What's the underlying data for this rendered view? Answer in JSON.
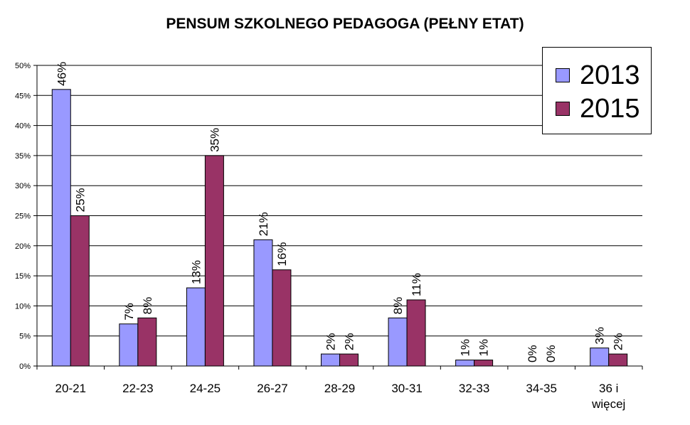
{
  "title": "PENSUM SZKOLNEGO PEDAGOGA (PEŁNY ETAT)",
  "chart_data": {
    "type": "bar",
    "title": "PENSUM SZKOLNEGO PEDAGOGA (PEŁNY ETAT)",
    "xlabel": "",
    "ylabel": "",
    "categories": [
      "20-21",
      "22-23",
      "24-25",
      "26-27",
      "28-29",
      "30-31",
      "32-33",
      "34-35",
      "36 i więcej"
    ],
    "category_lines": [
      [
        "20-21"
      ],
      [
        "22-23"
      ],
      [
        "24-25"
      ],
      [
        "26-27"
      ],
      [
        "28-29"
      ],
      [
        "30-31"
      ],
      [
        "32-33"
      ],
      [
        "34-35"
      ],
      [
        "36 i",
        "więcej"
      ]
    ],
    "series": [
      {
        "name": "2013",
        "color": "#9999ff",
        "values": [
          46,
          7,
          13,
          21,
          2,
          8,
          1,
          0,
          3
        ],
        "labels": [
          "46%",
          "7%",
          "13%",
          "21%",
          "2%",
          "8%",
          "1%",
          "0%",
          "3%"
        ]
      },
      {
        "name": "2015",
        "color": "#993366",
        "values": [
          25,
          8,
          35,
          16,
          2,
          11,
          1,
          0,
          2
        ],
        "labels": [
          "25%",
          "8%",
          "35%",
          "16%",
          "2%",
          "11%",
          "1%",
          "0%",
          "2%"
        ]
      }
    ],
    "ylim": [
      0,
      50
    ],
    "yticks": [
      0,
      5,
      10,
      15,
      20,
      25,
      30,
      35,
      40,
      45,
      50
    ],
    "ytick_labels": [
      "0%",
      "5%",
      "10%",
      "15%",
      "20%",
      "25%",
      "30%",
      "35%",
      "40%",
      "45%",
      "50%"
    ],
    "grid": true,
    "legend": {
      "position": "top-right",
      "entries": [
        "2013",
        "2015"
      ]
    }
  }
}
